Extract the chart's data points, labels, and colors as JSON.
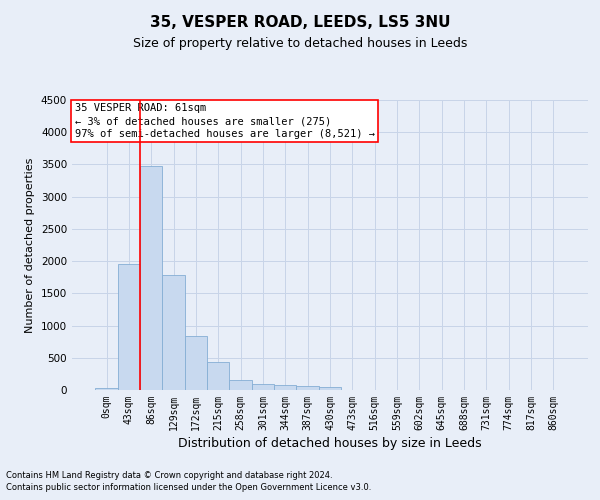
{
  "title": "35, VESPER ROAD, LEEDS, LS5 3NU",
  "subtitle": "Size of property relative to detached houses in Leeds",
  "xlabel": "Distribution of detached houses by size in Leeds",
  "ylabel": "Number of detached properties",
  "footnote1": "Contains HM Land Registry data © Crown copyright and database right 2024.",
  "footnote2": "Contains public sector information licensed under the Open Government Licence v3.0.",
  "annotation_line1": "35 VESPER ROAD: 61sqm",
  "annotation_line2": "← 3% of detached houses are smaller (275)",
  "annotation_line3": "97% of semi-detached houses are larger (8,521) →",
  "bar_color": "#c8d9ef",
  "bar_edge_color": "#85aed4",
  "vline_color": "red",
  "vline_x": 1.5,
  "categories": [
    "0sqm",
    "43sqm",
    "86sqm",
    "129sqm",
    "172sqm",
    "215sqm",
    "258sqm",
    "301sqm",
    "344sqm",
    "387sqm",
    "430sqm",
    "473sqm",
    "516sqm",
    "559sqm",
    "602sqm",
    "645sqm",
    "688sqm",
    "731sqm",
    "774sqm",
    "817sqm",
    "860sqm"
  ],
  "values": [
    25,
    1950,
    3480,
    1780,
    840,
    440,
    155,
    100,
    70,
    55,
    45,
    0,
    0,
    0,
    0,
    0,
    0,
    0,
    0,
    0,
    0
  ],
  "ylim": [
    0,
    4500
  ],
  "yticks": [
    0,
    500,
    1000,
    1500,
    2000,
    2500,
    3000,
    3500,
    4000,
    4500
  ],
  "grid_color": "#c8d4e8",
  "background_color": "#e8eef8",
  "title_fontsize": 11,
  "subtitle_fontsize": 9,
  "tick_fontsize": 7,
  "ylabel_fontsize": 8,
  "xlabel_fontsize": 9,
  "footnote_fontsize": 6,
  "annotation_fontsize": 7.5,
  "annotation_box_color": "white",
  "annotation_box_edge": "red"
}
